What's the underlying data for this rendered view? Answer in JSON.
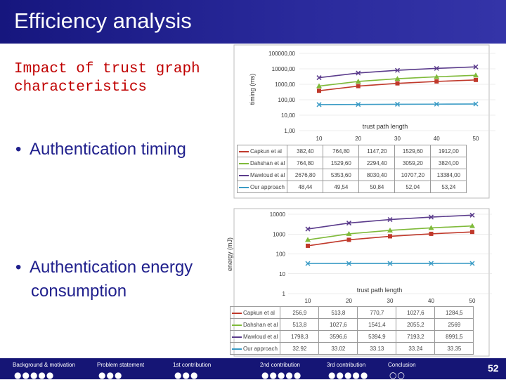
{
  "slide": {
    "title": "Efficiency analysis",
    "subtitle": "Impact of trust graph characteristics",
    "bullet1": "Authentication timing",
    "bullet2_line1": "Authentication energy",
    "bullet2_line2": "consumption",
    "page_number": "52"
  },
  "nav": {
    "sections": [
      {
        "label": "Background & motivation",
        "dots": "●●●●●"
      },
      {
        "label": "Problem statement",
        "dots": "●●●"
      },
      {
        "label": "1st contribution",
        "dots": "●●●"
      },
      {
        "label": "2nd contribution",
        "dots": "●●●●●"
      },
      {
        "label": "3rd contribution",
        "dots": "●●●●●"
      },
      {
        "label": "Conclusion",
        "dots": "○○"
      }
    ]
  },
  "colors": {
    "title_bar": "#1f1f8c",
    "subtitle": "#c00000",
    "bullet": "#1f1f8c",
    "series": [
      "#c0392b",
      "#7fba3a",
      "#5b3c8c",
      "#3a9bc5"
    ]
  },
  "chart_data": [
    {
      "type": "line",
      "ylabel": "timing (ms)",
      "xlabel": "trust path length",
      "scale": "log",
      "ylim": [
        1,
        100000
      ],
      "yticks": [
        "100000,00",
        "10000,00",
        "1000,00",
        "100,00",
        "10,00",
        "1,00"
      ],
      "x": [
        "10",
        "20",
        "30",
        "40",
        "50"
      ],
      "series": [
        {
          "name": "Capkun et al",
          "values": [
            382.4,
            764.8,
            1147.2,
            1529.6,
            1912.0
          ],
          "labels": [
            "382,40",
            "764,80",
            "1147,20",
            "1529,60",
            "1912,00"
          ]
        },
        {
          "name": "Dahshan et al",
          "values": [
            764.8,
            1529.6,
            2294.4,
            3059.2,
            3824.0
          ],
          "labels": [
            "764,80",
            "1529,60",
            "2294,40",
            "3059,20",
            "3824,00"
          ]
        },
        {
          "name": "Mawloud et al",
          "values": [
            2676.8,
            5353.6,
            8030.4,
            10707.2,
            13384.0
          ],
          "labels": [
            "2676,80",
            "5353,60",
            "8030,40",
            "10707,20",
            "13384,00"
          ]
        },
        {
          "name": "Our approach",
          "values": [
            48.44,
            49.54,
            50.84,
            52.04,
            53.24
          ],
          "labels": [
            "48,44",
            "49,54",
            "50,84",
            "52,04",
            "53,24"
          ]
        }
      ]
    },
    {
      "type": "line",
      "ylabel": "energy (mJ)",
      "xlabel": "trust path length",
      "scale": "log",
      "ylim": [
        1,
        10000
      ],
      "yticks": [
        "10000",
        "1000",
        "100",
        "10",
        "1"
      ],
      "x": [
        "10",
        "20",
        "30",
        "40",
        "50"
      ],
      "series": [
        {
          "name": "Capkun et al",
          "values": [
            256.9,
            513.8,
            770.7,
            1027.6,
            1284.5
          ],
          "labels": [
            "256,9",
            "513,8",
            "770,7",
            "1027,6",
            "1284,5"
          ]
        },
        {
          "name": "Dahshan et al",
          "values": [
            513.8,
            1027.6,
            1541.4,
            2055.2,
            2569
          ],
          "labels": [
            "513,8",
            "1027,6",
            "1541,4",
            "2055,2",
            "2569"
          ]
        },
        {
          "name": "Mawloud et al",
          "values": [
            1798.3,
            3596.6,
            5394.9,
            7193.2,
            8991.5
          ],
          "labels": [
            "1798,3",
            "3596,6",
            "5394,9",
            "7193,2",
            "8991,5"
          ]
        },
        {
          "name": "Our approach",
          "values": [
            32.92,
            33.02,
            33.13,
            33.24,
            33.35
          ],
          "labels": [
            "32.92",
            "33.02",
            "33.13",
            "33.24",
            "33.35"
          ]
        }
      ]
    }
  ]
}
